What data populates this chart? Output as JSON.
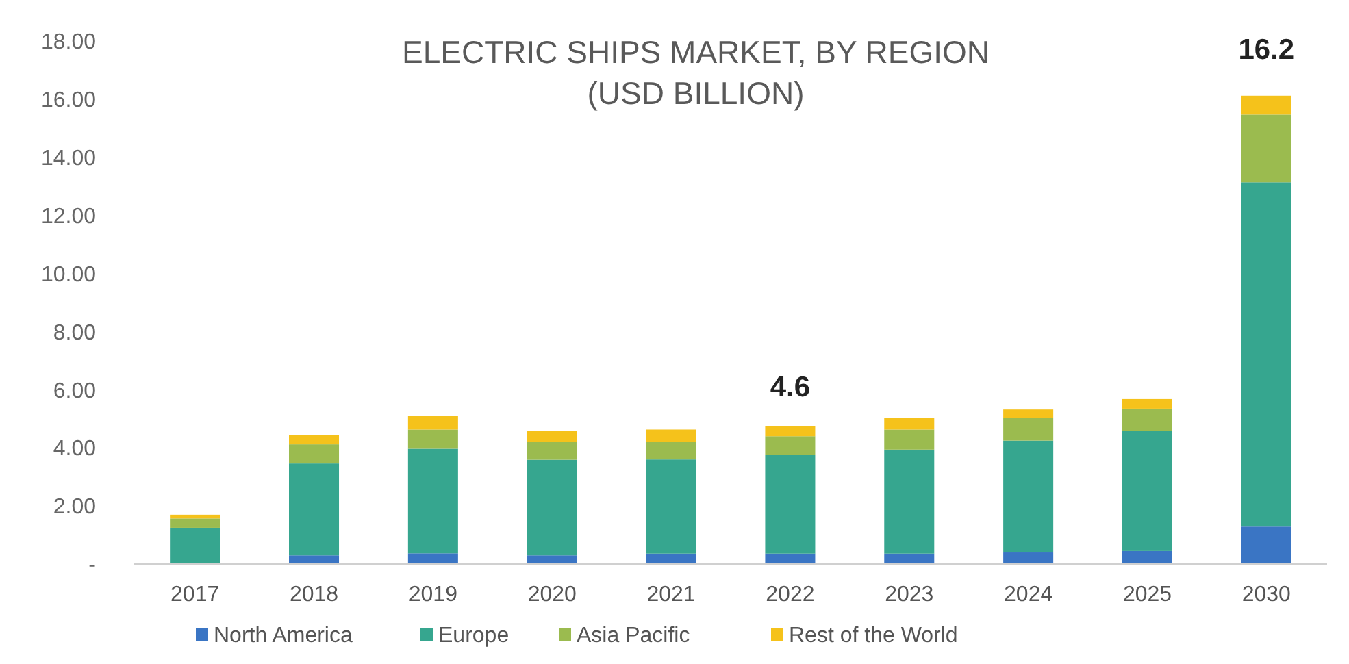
{
  "chart_data": {
    "type": "bar",
    "stacked": true,
    "title": "ELECTRIC SHIPS MARKET, BY REGION (USD BILLION)",
    "categories": [
      "2017",
      "2018",
      "2019",
      "2020",
      "2021",
      "2022",
      "2023",
      "2024",
      "2025",
      "2030"
    ],
    "series": [
      {
        "name": "North America",
        "color": "#3a75c4",
        "values": [
          0,
          0.3,
          0.37,
          0.3,
          0.36,
          0.36,
          0.36,
          0.4,
          0.45,
          1.29
        ]
      },
      {
        "name": "Europe",
        "color": "#36a68f",
        "values": [
          1.25,
          3.16,
          3.6,
          3.29,
          3.24,
          3.39,
          3.58,
          3.85,
          4.13,
          11.85
        ]
      },
      {
        "name": "Asia Pacific",
        "color": "#9bbb4f",
        "values": [
          0.32,
          0.66,
          0.66,
          0.62,
          0.61,
          0.65,
          0.69,
          0.77,
          0.77,
          2.33
        ]
      },
      {
        "name": "Rest of the World",
        "color": "#f5c21b",
        "values": [
          0.13,
          0.32,
          0.46,
          0.37,
          0.42,
          0.35,
          0.39,
          0.3,
          0.33,
          0.65
        ]
      }
    ],
    "ylim": [
      0,
      18
    ],
    "yticks": [
      {
        "value": 0,
        "label": "-"
      },
      {
        "value": 2,
        "label": "2.00"
      },
      {
        "value": 4,
        "label": "4.00"
      },
      {
        "value": 6,
        "label": "6.00"
      },
      {
        "value": 8,
        "label": "8.00"
      },
      {
        "value": 10,
        "label": "10.00"
      },
      {
        "value": 12,
        "label": "12.00"
      },
      {
        "value": 14,
        "label": "14.00"
      },
      {
        "value": 16,
        "label": "16.00"
      },
      {
        "value": 18,
        "label": "18.00"
      }
    ],
    "annotations": [
      {
        "text": "4.6",
        "x": "2022",
        "y": 4.6
      },
      {
        "text": "16.2",
        "x": "2030",
        "y": 16.2
      }
    ],
    "legend": "bottom",
    "grid": false
  }
}
